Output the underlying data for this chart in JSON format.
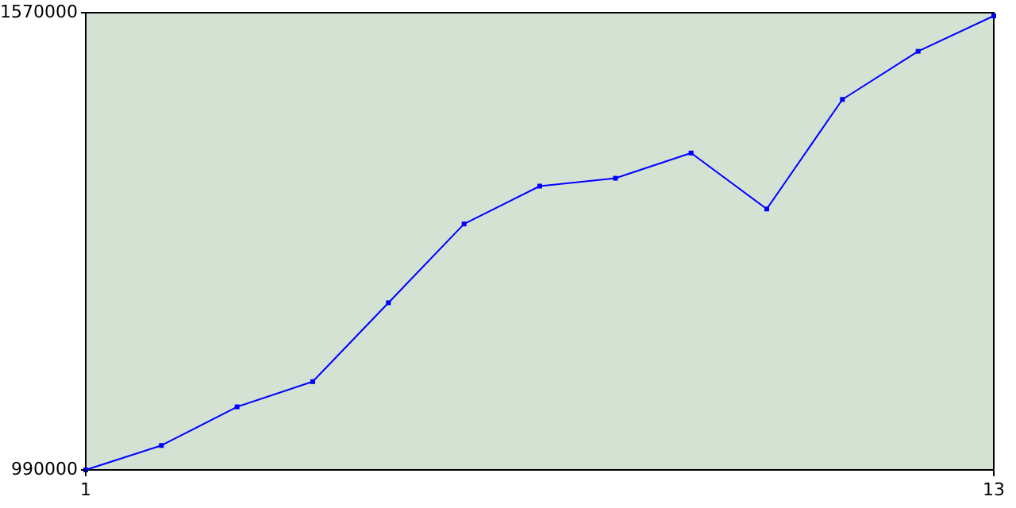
{
  "chart_data": {
    "type": "line",
    "x": [
      1,
      2,
      3,
      4,
      5,
      6,
      7,
      8,
      9,
      10,
      11,
      12,
      13
    ],
    "series": [
      {
        "color": "#0000ff",
        "values": [
          990000,
          1021000,
          1070000,
          1102000,
          1202000,
          1302000,
          1350000,
          1360000,
          1392000,
          1321000,
          1460000,
          1521000,
          1566000
        ]
      }
    ],
    "xlim": [
      1,
      13
    ],
    "xticks": [
      1,
      13
    ],
    "ylim": [
      990000,
      1570000
    ],
    "yticks": [
      990000,
      1570000
    ],
    "grid": false,
    "marker": "square",
    "line_style": "solid"
  }
}
